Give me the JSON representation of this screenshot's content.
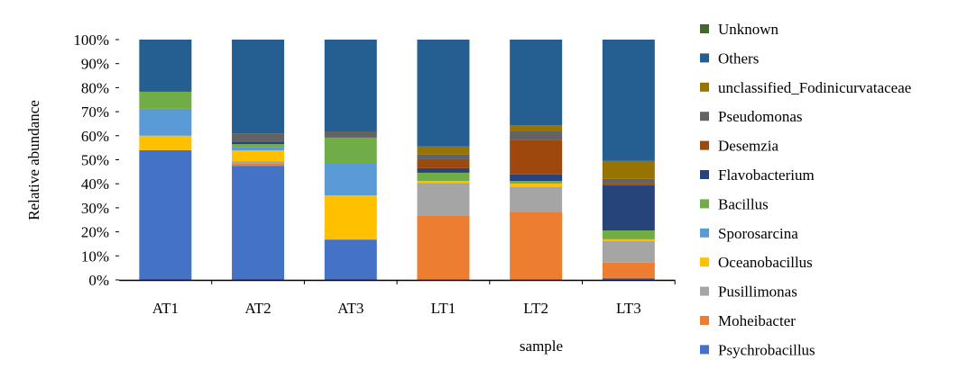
{
  "chart_data": {
    "type": "bar",
    "stacked": true,
    "title": "",
    "xlabel": "sample",
    "ylabel": "Relative abundance",
    "ylim": [
      0,
      100
    ],
    "yticks": [
      "0%",
      "10%",
      "20%",
      "30%",
      "40%",
      "50%",
      "60%",
      "70%",
      "80%",
      "90%",
      "100%"
    ],
    "categories": [
      "AT1",
      "AT2",
      "AT3",
      "LT1",
      "LT2",
      "LT3"
    ],
    "legend_position": "right",
    "series": [
      {
        "name": "Psychrobacillus",
        "color": "#4472C4",
        "values": [
          54.0,
          47.5,
          16.8,
          0,
          0,
          0.8
        ]
      },
      {
        "name": "Moheibacter",
        "color": "#ED7D31",
        "values": [
          0,
          0.8,
          0,
          26.9,
          28.4,
          6.4
        ]
      },
      {
        "name": "Pusillimonas",
        "color": "#A5A5A5",
        "values": [
          0,
          1.1,
          0,
          13.5,
          10.3,
          8.9
        ]
      },
      {
        "name": "Oceanobacillus",
        "color": "#FFC000",
        "values": [
          6.0,
          4.5,
          18.4,
          0.8,
          1.4,
          0.8
        ]
      },
      {
        "name": "Sporosarcina",
        "color": "#5B9BD5",
        "values": [
          11.2,
          1.5,
          13.5,
          0,
          0,
          0
        ]
      },
      {
        "name": "Bacillus",
        "color": "#70AD47",
        "values": [
          7.1,
          1.1,
          10.5,
          3.4,
          1.1,
          3.7
        ]
      },
      {
        "name": "Flavobacterium",
        "color": "#264478",
        "values": [
          0,
          0.8,
          0,
          1.9,
          2.7,
          18.8
        ]
      },
      {
        "name": "Desemzia",
        "color": "#9E480E",
        "values": [
          0,
          0,
          0,
          3.7,
          14.3,
          0.9
        ]
      },
      {
        "name": "Pseudomonas",
        "color": "#636363",
        "values": [
          0,
          3.7,
          2.6,
          1.9,
          3.6,
          1.7
        ]
      },
      {
        "name": "unclassified_Fodinicurvataceae",
        "color": "#997300",
        "values": [
          0,
          0,
          0,
          3.4,
          2.6,
          7.5
        ]
      },
      {
        "name": "Others",
        "color": "#255E91",
        "values": [
          21.7,
          39.0,
          38.2,
          44.5,
          35.6,
          50.5
        ]
      },
      {
        "name": "Unknown",
        "color": "#43682B",
        "values": [
          0,
          0,
          0,
          0,
          0,
          0
        ]
      }
    ]
  }
}
